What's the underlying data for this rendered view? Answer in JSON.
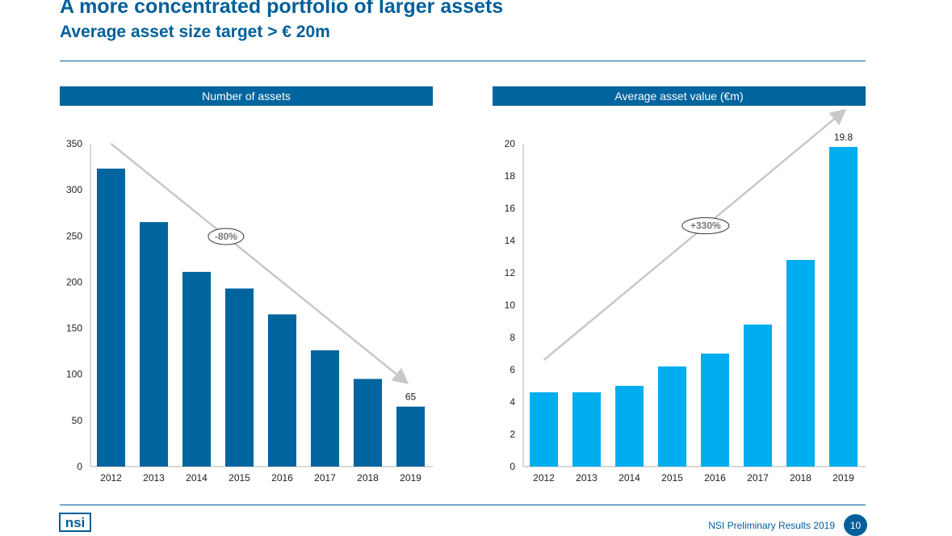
{
  "header": {
    "title": "A more concentrated portfolio of larger assets",
    "subtitle": "Average asset size target > € 20m"
  },
  "chart_data": [
    {
      "type": "bar",
      "title": "Number of assets",
      "categories": [
        "2012",
        "2013",
        "2014",
        "2015",
        "2016",
        "2017",
        "2018",
        "2019"
      ],
      "values": [
        323,
        265,
        211,
        193,
        165,
        126,
        95,
        65
      ],
      "data_labels": [
        {
          "category": "2019",
          "text": "65"
        }
      ],
      "ylim": [
        0,
        350
      ],
      "yticks": [
        0,
        50,
        100,
        150,
        200,
        250,
        300,
        350
      ],
      "bar_color": "#00649e",
      "grid": false,
      "trend_annotation": "-80%",
      "trend_direction": "down"
    },
    {
      "type": "bar",
      "title": "Average asset value (€m)",
      "categories": [
        "2012",
        "2013",
        "2014",
        "2015",
        "2016",
        "2017",
        "2018",
        "2019"
      ],
      "values": [
        4.6,
        4.6,
        5.0,
        6.2,
        7.0,
        8.8,
        12.8,
        19.8
      ],
      "data_labels": [
        {
          "category": "2019",
          "text": "19.8"
        }
      ],
      "ylim": [
        0,
        20
      ],
      "yticks": [
        0,
        2,
        4,
        6,
        8,
        10,
        12,
        14,
        16,
        18,
        20
      ],
      "bar_color": "#00aeef",
      "grid": false,
      "trend_annotation": "+330%",
      "trend_direction": "up"
    }
  ],
  "footer": {
    "logo_text": "nsi",
    "text": "NSI Preliminary Results 2019",
    "page_number": "10"
  },
  "colors": {
    "brand": "#005f99",
    "header_bar": "#00649e",
    "arrow": "#c8c8c8"
  }
}
